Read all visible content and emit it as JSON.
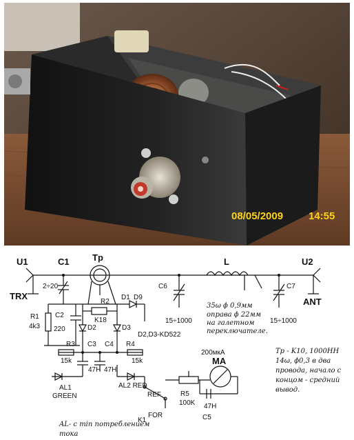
{
  "photo": {
    "timestamp_date": "08/05/2009",
    "timestamp_time": "14:55",
    "timestamp_color": "#ffd21a"
  },
  "schematic": {
    "labels": {
      "u1": "U1",
      "u2": "U2",
      "c1": "C1",
      "tp": "Tp",
      "l": "L",
      "trx": "TRX",
      "ant": "ANT",
      "c1_val": "2÷20",
      "c6": "C6",
      "c7": "C7",
      "r1": "R1",
      "r1_val": "4k3",
      "c2": "C2",
      "c2_val": "220",
      "r2": "R2",
      "r2_val": "K18",
      "d1": "D1",
      "d9": "D9",
      "d2": "D2",
      "d3": "D3",
      "diodes": "D2,D3-KD522",
      "c3": "C3",
      "c4": "C4",
      "r3": "R3",
      "r4": "R4",
      "r3_val": "15k",
      "r4_val": "15k",
      "c3_val": "47H",
      "c4_val": "47H",
      "al1": "AL1",
      "al1_color": "GREEN",
      "al2": "AL2 RED",
      "ref": "REF",
      "for": "FOR",
      "k1": "K1",
      "r5": "R5",
      "r5_val": "100K",
      "c5": "C5",
      "c5_val": "47H",
      "ma": "MA",
      "ma_val": "200мкА",
      "c6_range": "15÷1000",
      "c7_range": "15÷1000"
    },
    "notes": {
      "coil_line1": "35ω ϕ 0,9мм",
      "coil_line2": "оправа ϕ 22мм",
      "coil_line3": "на галетном",
      "coil_line4": "переключателе.",
      "tp_line1": "Tp - K10, 1000НН",
      "tp_line2": "14ω, ϕ0,3 в два",
      "tp_line3": "провода, начало с",
      "tp_line4": "концом - средний",
      "tp_line5": "вывод.",
      "al_line1": "AL- с min потреблением",
      "al_line2": "тока"
    }
  }
}
